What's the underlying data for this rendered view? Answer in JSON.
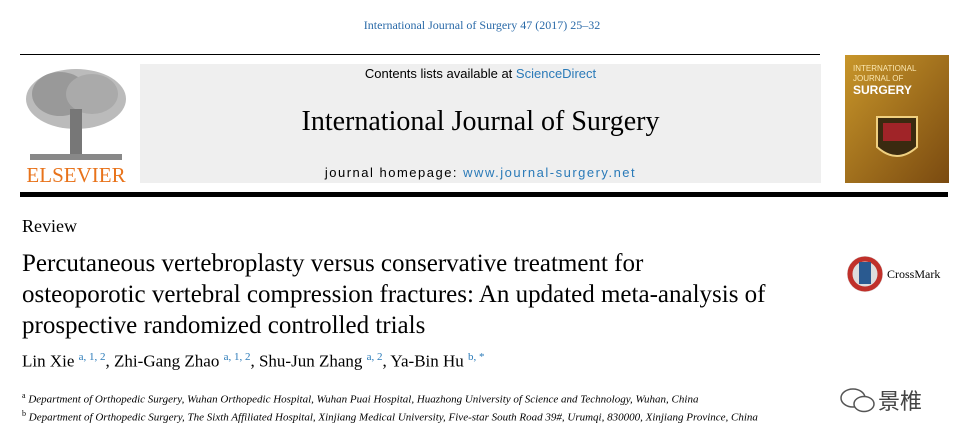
{
  "header": {
    "citation": "International Journal of Surgery 47 (2017) 25–32",
    "contents_prefix": "Contents lists available at",
    "contents_link": "ScienceDirect",
    "journal_name": "International Journal of Surgery",
    "homepage_label": "journal homepage:",
    "homepage_url": "www.journal-surgery.net",
    "publisher": "ELSEVIER",
    "cover_text": [
      "INTERNATIONAL",
      "JOURNAL OF",
      "SURGERY"
    ]
  },
  "article": {
    "type": "Review",
    "title": "Percutaneous vertebroplasty versus conservative treatment for osteoporotic vertebral compression fractures: An updated meta-analysis of prospective randomized controlled trials",
    "crossmark": "CrossMark",
    "author_separator": ",",
    "authors": [
      {
        "name": "Lin Xie",
        "sup": "a, 1, 2"
      },
      {
        "name": "Zhi-Gang Zhao",
        "sup": "a, 1, 2"
      },
      {
        "name": "Shu-Jun Zhang",
        "sup": "a, 2"
      },
      {
        "name": "Ya-Bin Hu",
        "sup": "b, *"
      }
    ],
    "affiliations": [
      {
        "mark": "a",
        "text": "Department of Orthopedic Surgery, Wuhan Orthopedic Hospital, Wuhan Puai Hospital, Huazhong University of Science and Technology, Wuhan, China"
      },
      {
        "mark": "b",
        "text": "Department of Orthopedic Surgery, The Sixth Affiliated Hospital, Xinjiang Medical University, Five-star South Road 39#, Urumqi, 830000, Xinjiang Province, China"
      }
    ]
  },
  "watermark": "景椎"
}
